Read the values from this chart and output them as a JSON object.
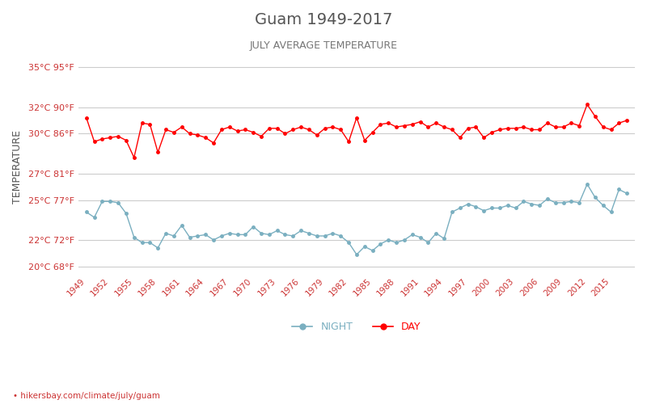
{
  "title": "Guam 1949-2017",
  "subtitle": "JULY AVERAGE TEMPERATURE",
  "ylabel": "TEMPERATURE",
  "xlabel_url": "• hikersbay.com/climate/july/guam",
  "legend_night": "NIGHT",
  "legend_day": "DAY",
  "background_color": "#ffffff",
  "grid_color": "#cccccc",
  "day_color": "#ff0000",
  "night_color": "#7aafc0",
  "title_color": "#555555",
  "subtitle_color": "#777777",
  "ylabel_color": "#555555",
  "tick_color": "#cc3333",
  "yticks_celsius": [
    20,
    22,
    25,
    27,
    30,
    32,
    35
  ],
  "yticks_fahrenheit": [
    68,
    72,
    77,
    81,
    86,
    90,
    95
  ],
  "years": [
    1949,
    1950,
    1951,
    1952,
    1953,
    1954,
    1955,
    1956,
    1957,
    1958,
    1959,
    1960,
    1961,
    1962,
    1963,
    1964,
    1965,
    1966,
    1967,
    1968,
    1969,
    1970,
    1971,
    1972,
    1973,
    1974,
    1975,
    1976,
    1977,
    1978,
    1979,
    1980,
    1981,
    1982,
    1983,
    1984,
    1985,
    1986,
    1987,
    1988,
    1989,
    1990,
    1991,
    1992,
    1993,
    1994,
    1995,
    1996,
    1997,
    1998,
    1999,
    2000,
    2001,
    2002,
    2003,
    2004,
    2005,
    2006,
    2007,
    2008,
    2009,
    2010,
    2011,
    2012,
    2013,
    2014,
    2015,
    2016,
    2017
  ],
  "day_temps": [
    31.2,
    29.4,
    29.6,
    29.7,
    29.8,
    29.5,
    28.2,
    30.8,
    30.7,
    28.6,
    30.3,
    30.1,
    30.5,
    30.0,
    29.9,
    29.7,
    29.3,
    30.3,
    30.5,
    30.2,
    30.3,
    30.1,
    29.8,
    30.4,
    30.4,
    30.0,
    30.3,
    30.5,
    30.3,
    29.9,
    30.4,
    30.5,
    30.3,
    29.4,
    31.2,
    29.5,
    30.1,
    30.7,
    30.8,
    30.5,
    30.6,
    30.7,
    30.9,
    30.5,
    30.8,
    30.5,
    30.3,
    29.7,
    30.4,
    30.5,
    29.7,
    30.1,
    30.3,
    30.4,
    30.4,
    30.5,
    30.3,
    30.3,
    30.8,
    30.5,
    30.5,
    30.8,
    30.6,
    32.2,
    31.3,
    30.5,
    30.3,
    30.8,
    31.0
  ],
  "night_temps": [
    24.1,
    23.7,
    24.9,
    24.9,
    24.8,
    24.0,
    22.2,
    21.8,
    21.8,
    21.4,
    22.5,
    22.3,
    23.1,
    22.2,
    22.3,
    22.4,
    22.0,
    22.3,
    22.5,
    22.4,
    22.4,
    23.0,
    22.5,
    22.4,
    22.7,
    22.4,
    22.3,
    22.7,
    22.5,
    22.3,
    22.3,
    22.5,
    22.3,
    21.8,
    20.9,
    21.5,
    21.2,
    21.7,
    22.0,
    21.8,
    22.0,
    22.4,
    22.2,
    21.8,
    22.5,
    22.1,
    24.1,
    24.4,
    24.7,
    24.5,
    24.2,
    24.4,
    24.4,
    24.6,
    24.4,
    24.9,
    24.7,
    24.6,
    25.1,
    24.8,
    24.8,
    24.9,
    24.8,
    26.2,
    25.2,
    24.6,
    24.1,
    25.8,
    25.5
  ],
  "ymin": 19.5,
  "ymax": 35.5,
  "xtick_years": [
    1949,
    1952,
    1955,
    1958,
    1961,
    1964,
    1967,
    1970,
    1973,
    1976,
    1979,
    1982,
    1985,
    1988,
    1991,
    1994,
    1997,
    2000,
    2003,
    2006,
    2009,
    2012,
    2015
  ]
}
